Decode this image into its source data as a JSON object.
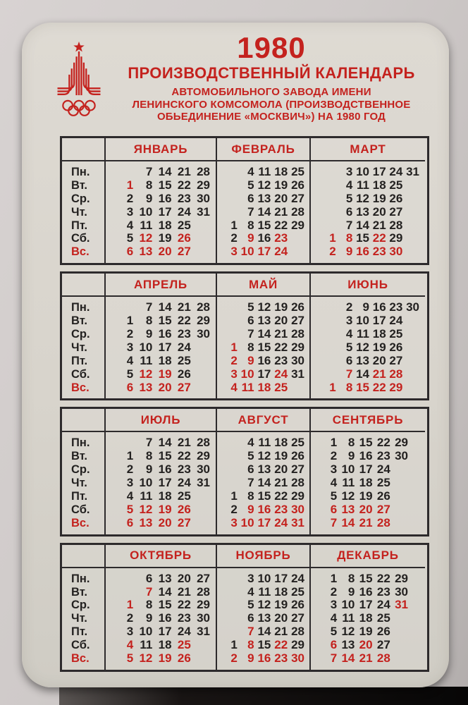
{
  "colors": {
    "red": "#c4221e",
    "ink": "#232120",
    "card_bg": "#d8d4cc",
    "backdrop": "#cfcac9",
    "border": "#2d2a2c"
  },
  "header": {
    "year": "1980",
    "title": "ПРОИЗВОДСТВЕННЫЙ КАЛЕНДАРЬ",
    "subtitle_lines": [
      "АВТОМОБИЛЬНОГО ЗАВОДА ИМЕНИ",
      "ЛЕНИНСКОГО КОМСОМОЛА (ПРОИЗВОДСТВЕННОЕ",
      "ОБЬЕДИНЕНИЕ «МОСКВИЧ») НА 1980 ГОД"
    ],
    "logo": "moscow-1980-olympic-emblem"
  },
  "weekdays": [
    "Пн.",
    "Вт.",
    "Ср.",
    "Чт.",
    "Пт.",
    "Сб.",
    "Вс."
  ],
  "red_weekday_index": 6,
  "legend_note": "asterisk suffix marks red (non-working) day",
  "quarters": [
    [
      {
        "name": "ЯНВАРЬ",
        "cols": 5,
        "rows": [
          [
            "",
            "7",
            "14",
            "21",
            "28"
          ],
          [
            "1*",
            "8",
            "15",
            "22",
            "29"
          ],
          [
            "2",
            "9",
            "16",
            "23",
            "30"
          ],
          [
            "3",
            "10",
            "17",
            "24",
            "31"
          ],
          [
            "4",
            "11",
            "18",
            "25",
            ""
          ],
          [
            "5",
            "12*",
            "19",
            "26*",
            ""
          ],
          [
            "6*",
            "13*",
            "20*",
            "27*",
            ""
          ]
        ]
      },
      {
        "name": "ФЕВРАЛЬ",
        "cols": 5,
        "rows": [
          [
            "",
            "4",
            "11",
            "18",
            "25"
          ],
          [
            "",
            "5",
            "12",
            "19",
            "26"
          ],
          [
            "",
            "6",
            "13",
            "20",
            "27"
          ],
          [
            "",
            "7",
            "14",
            "21",
            "28"
          ],
          [
            "1",
            "8",
            "15",
            "22",
            "29"
          ],
          [
            "2",
            "9*",
            "16",
            "23*",
            ""
          ],
          [
            "3*",
            "10*",
            "17*",
            "24*",
            ""
          ]
        ]
      },
      {
        "name": "МАРТ",
        "cols": 6,
        "rows": [
          [
            "",
            "3",
            "10",
            "17",
            "24",
            "31"
          ],
          [
            "",
            "4",
            "11",
            "18",
            "25",
            ""
          ],
          [
            "",
            "5",
            "12",
            "19",
            "26",
            ""
          ],
          [
            "",
            "6",
            "13",
            "20",
            "27",
            ""
          ],
          [
            "",
            "7",
            "14",
            "21",
            "28",
            ""
          ],
          [
            "1*",
            "8*",
            "15",
            "22*",
            "29",
            ""
          ],
          [
            "2*",
            "9*",
            "16*",
            "23*",
            "30*",
            ""
          ]
        ]
      }
    ],
    [
      {
        "name": "АПРЕЛЬ",
        "cols": 5,
        "rows": [
          [
            "",
            "7",
            "14",
            "21",
            "28"
          ],
          [
            "1",
            "8",
            "15",
            "22",
            "29"
          ],
          [
            "2",
            "9",
            "16",
            "23",
            "30"
          ],
          [
            "3",
            "10",
            "17",
            "24",
            ""
          ],
          [
            "4",
            "11",
            "18",
            "25",
            ""
          ],
          [
            "5",
            "12*",
            "19*",
            "26",
            ""
          ],
          [
            "6*",
            "13*",
            "20*",
            "27*",
            ""
          ]
        ]
      },
      {
        "name": "МАЙ",
        "cols": 5,
        "rows": [
          [
            "",
            "5",
            "12",
            "19",
            "26"
          ],
          [
            "",
            "6",
            "13",
            "20",
            "27"
          ],
          [
            "",
            "7",
            "14",
            "21",
            "28"
          ],
          [
            "1*",
            "8",
            "15",
            "22",
            "29"
          ],
          [
            "2*",
            "9*",
            "16",
            "23",
            "30"
          ],
          [
            "3*",
            "10*",
            "17",
            "24*",
            "31"
          ],
          [
            "4*",
            "11*",
            "18*",
            "25*",
            ""
          ]
        ]
      },
      {
        "name": "ИЮНЬ",
        "cols": 6,
        "rows": [
          [
            "",
            "2",
            "9",
            "16",
            "23",
            "30"
          ],
          [
            "",
            "3",
            "10",
            "17",
            "24",
            ""
          ],
          [
            "",
            "4",
            "11",
            "18",
            "25",
            ""
          ],
          [
            "",
            "5",
            "12",
            "19",
            "26",
            ""
          ],
          [
            "",
            "6",
            "13",
            "20",
            "27",
            ""
          ],
          [
            "",
            "7*",
            "14",
            "21*",
            "28*",
            ""
          ],
          [
            "1*",
            "8*",
            "15*",
            "22*",
            "29*",
            ""
          ]
        ]
      }
    ],
    [
      {
        "name": "ИЮЛЬ",
        "cols": 5,
        "rows": [
          [
            "",
            "7",
            "14",
            "21",
            "28"
          ],
          [
            "1",
            "8",
            "15",
            "22",
            "29"
          ],
          [
            "2",
            "9",
            "16",
            "23",
            "30"
          ],
          [
            "3",
            "10",
            "17",
            "24",
            "31"
          ],
          [
            "4",
            "11",
            "18",
            "25",
            ""
          ],
          [
            "5*",
            "12*",
            "19*",
            "26*",
            ""
          ],
          [
            "6*",
            "13*",
            "20*",
            "27*",
            ""
          ]
        ]
      },
      {
        "name": "АВГУСТ",
        "cols": 5,
        "rows": [
          [
            "",
            "4",
            "11",
            "18",
            "25"
          ],
          [
            "",
            "5",
            "12",
            "19",
            "26"
          ],
          [
            "",
            "6",
            "13",
            "20",
            "27"
          ],
          [
            "",
            "7",
            "14",
            "21",
            "28"
          ],
          [
            "1",
            "8",
            "15",
            "22",
            "29"
          ],
          [
            "2",
            "9*",
            "16*",
            "23*",
            "30*"
          ],
          [
            "3*",
            "10*",
            "17*",
            "24*",
            "31*"
          ]
        ]
      },
      {
        "name": "СЕНТЯБРЬ",
        "cols": 5,
        "rows": [
          [
            "1",
            "8",
            "15",
            "22",
            "29"
          ],
          [
            "2",
            "9",
            "16",
            "23",
            "30"
          ],
          [
            "3",
            "10",
            "17",
            "24",
            ""
          ],
          [
            "4",
            "11",
            "18",
            "25",
            ""
          ],
          [
            "5",
            "12",
            "19",
            "26",
            ""
          ],
          [
            "6*",
            "13*",
            "20*",
            "27*",
            ""
          ],
          [
            "7*",
            "14*",
            "21*",
            "28*",
            ""
          ]
        ]
      }
    ],
    [
      {
        "name": "ОКТЯБРЬ",
        "cols": 5,
        "rows": [
          [
            "",
            "6",
            "13",
            "20",
            "27"
          ],
          [
            "",
            "7*",
            "14",
            "21",
            "28"
          ],
          [
            "1*",
            "8",
            "15",
            "22",
            "29"
          ],
          [
            "2",
            "9",
            "16",
            "23",
            "30"
          ],
          [
            "3",
            "10",
            "17",
            "24",
            "31"
          ],
          [
            "4*",
            "11",
            "18",
            "25*",
            ""
          ],
          [
            "5*",
            "12*",
            "19*",
            "26*",
            ""
          ]
        ]
      },
      {
        "name": "НОЯБРЬ",
        "cols": 5,
        "rows": [
          [
            "",
            "3",
            "10",
            "17",
            "24"
          ],
          [
            "",
            "4",
            "11",
            "18",
            "25"
          ],
          [
            "",
            "5",
            "12",
            "19",
            "26"
          ],
          [
            "",
            "6",
            "13",
            "20",
            "27"
          ],
          [
            "",
            "7*",
            "14",
            "21",
            "28"
          ],
          [
            "1",
            "8*",
            "15",
            "22*",
            "29"
          ],
          [
            "2*",
            "9*",
            "16*",
            "23*",
            "30*"
          ]
        ]
      },
      {
        "name": "ДЕКАБРЬ",
        "cols": 5,
        "rows": [
          [
            "1",
            "8",
            "15",
            "22",
            "29"
          ],
          [
            "2",
            "9",
            "16",
            "23",
            "30"
          ],
          [
            "3",
            "10",
            "17",
            "24",
            "31*"
          ],
          [
            "4",
            "11",
            "18",
            "25",
            ""
          ],
          [
            "5",
            "12",
            "19",
            "26",
            ""
          ],
          [
            "6*",
            "13",
            "20*",
            "27",
            ""
          ],
          [
            "7*",
            "14*",
            "21*",
            "28*",
            ""
          ]
        ]
      }
    ]
  ]
}
